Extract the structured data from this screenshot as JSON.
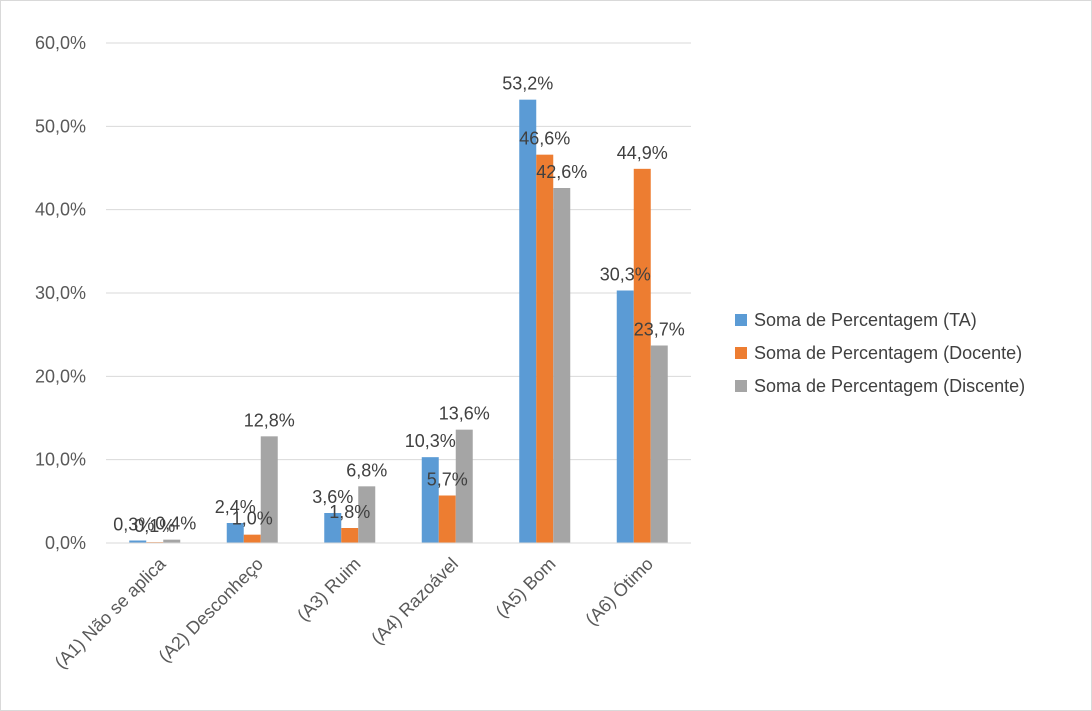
{
  "chart_data": {
    "type": "bar",
    "title": "",
    "xlabel": "",
    "ylabel": "",
    "categories": [
      "(A1) Não se aplica",
      "(A2) Desconheço",
      "(A3) Ruim",
      "(A4) Razoável",
      "(A5) Bom",
      "(A6) Ótimo"
    ],
    "series": [
      {
        "name": "Soma de Percentagem (TA)",
        "color": "#5B9BD5",
        "values": [
          0.3,
          2.4,
          3.6,
          10.3,
          53.2,
          30.3
        ],
        "labels": [
          "0,3%",
          "2,4%",
          "3,6%",
          "10,3%",
          "53,2%",
          "30,3%"
        ]
      },
      {
        "name": "Soma de Percentagem (Docente)",
        "color": "#ED7D31",
        "values": [
          0.1,
          1.0,
          1.8,
          5.7,
          46.6,
          44.9
        ],
        "labels": [
          "0,1%",
          "1,0%",
          "1,8%",
          "5,7%",
          "46,6%",
          "44,9%"
        ]
      },
      {
        "name": "Soma de Percentagem (Discente)",
        "color": "#A5A5A5",
        "values": [
          0.4,
          12.8,
          6.8,
          13.6,
          42.6,
          23.7
        ],
        "labels": [
          "0,4%",
          "12,8%",
          "6,8%",
          "13,6%",
          "42,6%",
          "23,7%"
        ]
      }
    ],
    "ylim": [
      0,
      60
    ],
    "yticks": [
      0,
      10,
      20,
      30,
      40,
      50,
      60
    ],
    "ytick_labels": [
      "0,0%",
      "10,0%",
      "20,0%",
      "30,0%",
      "40,0%",
      "50,0%",
      "60,0%"
    ],
    "grid": true,
    "legend_position": "right"
  }
}
